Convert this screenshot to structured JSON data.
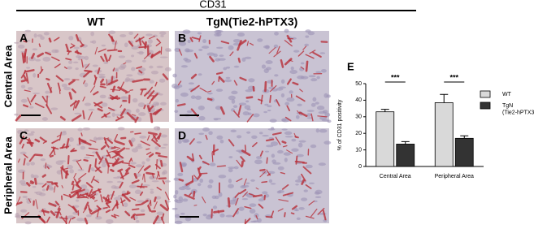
{
  "header": {
    "title": "CD31",
    "columns": [
      "WT",
      "TgN(Tie2-hPTX3)"
    ],
    "rows": [
      "Central Area",
      "Peripheral Area"
    ]
  },
  "panels": [
    "A",
    "B",
    "C",
    "D"
  ],
  "chart_data": {
    "type": "bar",
    "panel_label": "E",
    "y_label": "% of CD31 positivity",
    "categories": [
      "Central Area",
      "Peripheral Area"
    ],
    "series": [
      {
        "name": "WT",
        "color": "#d9d9d9",
        "values": [
          33,
          38.5
        ],
        "errors": [
          1.5,
          5
        ]
      },
      {
        "name": "TgN\n(Tie2-hPTX3)",
        "color": "#333333",
        "values": [
          13.5,
          17
        ],
        "errors": [
          1.5,
          1.5
        ]
      }
    ],
    "ylim": [
      0,
      50
    ],
    "yticks": [
      0,
      10,
      20,
      30,
      40,
      50
    ],
    "annotations": [
      "***",
      "***"
    ],
    "legend": "right"
  }
}
